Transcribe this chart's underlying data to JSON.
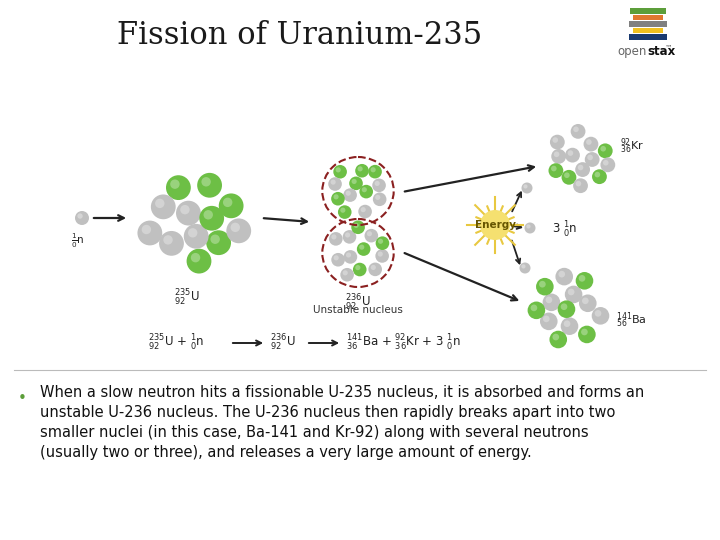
{
  "title": "Fission of Uranium-235",
  "title_fontsize": 22,
  "title_font": "serif",
  "background_color": "#ffffff",
  "bullet_text_lines": [
    "When a slow neutron hits a fissionable U-235 nucleus, it is absorbed and forms an",
    "unstable U-236 nucleus. The U-236 nucleus then rapidly breaks apart into two",
    "smaller nuclei (in this case, Ba-141 and Kr-92) along with several neutrons",
    "(usually two or three), and releases a very large amount of energy."
  ],
  "bullet_fontsize": 10.5,
  "neutron_color": "#c0c0c0",
  "proton_color": "#6dbf45",
  "nucleus_border_color": "#8B2020",
  "energy_color": "#f0d060",
  "openstax_colors": [
    "#5c9e3a",
    "#e07830",
    "#808080",
    "#f0c020",
    "#1a3a70"
  ],
  "arrow_color": "#222222",
  "label_fontsize": 8,
  "label_fontsize_small": 6.5
}
